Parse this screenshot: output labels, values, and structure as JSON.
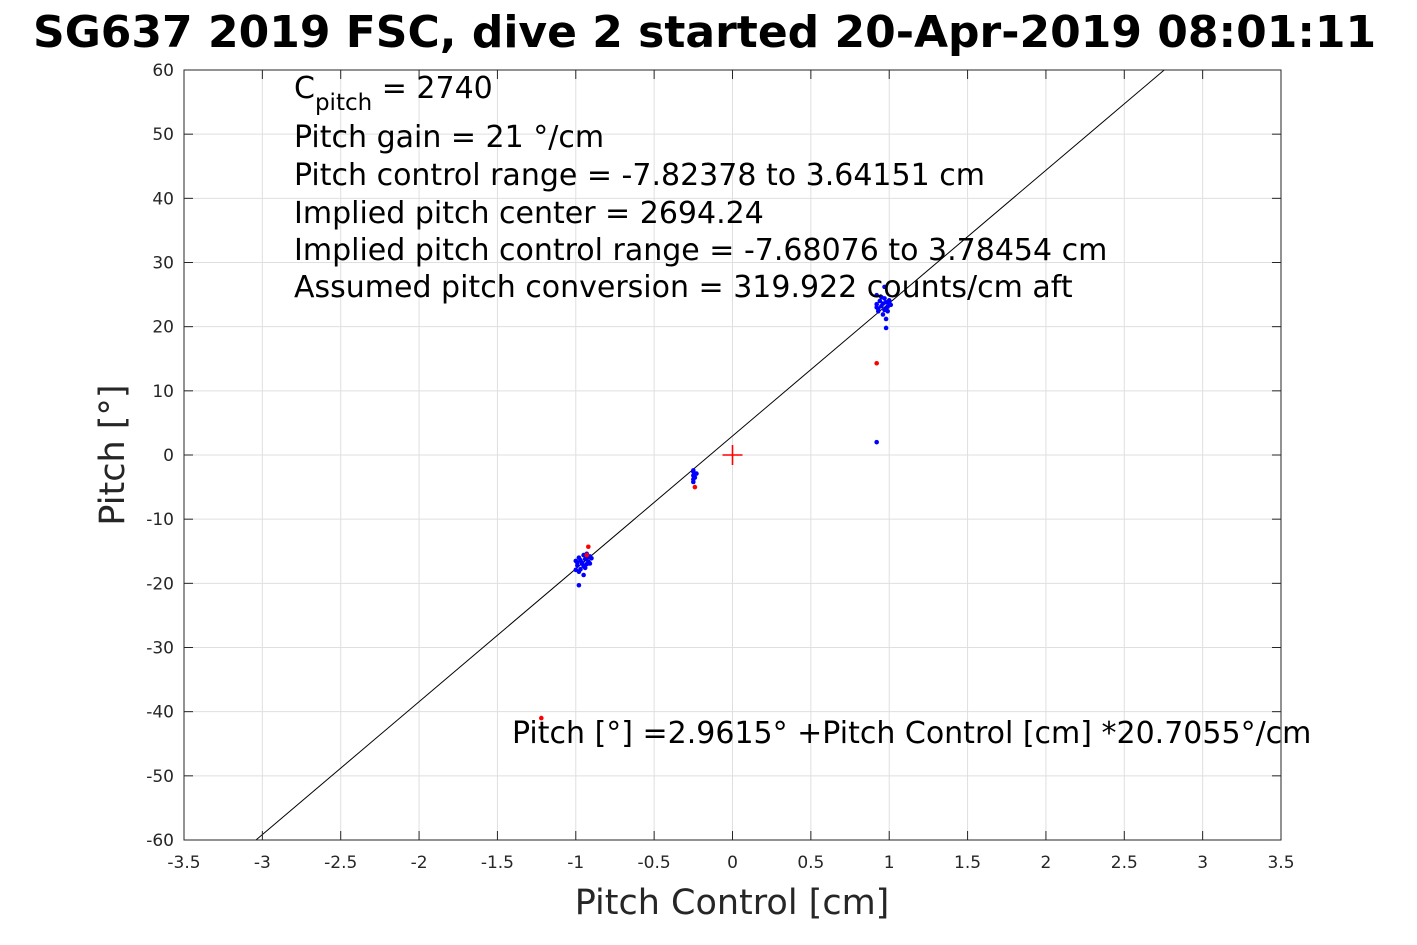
{
  "chart_data": {
    "type": "scatter",
    "title": "SG637 2019 FSC, dive 2 started 20-Apr-2019 08:01:11",
    "xlabel": "Pitch Control [cm]",
    "ylabel": "Pitch [°]",
    "xlim": [
      -3.5,
      3.5
    ],
    "ylim": [
      -60,
      60
    ],
    "grid": true,
    "x_ticks": [
      -3.5,
      -3,
      -2.5,
      -2,
      -1.5,
      -1,
      -0.5,
      0,
      0.5,
      1,
      1.5,
      2,
      2.5,
      3,
      3.5
    ],
    "y_ticks": [
      -60,
      -50,
      -40,
      -30,
      -20,
      -10,
      0,
      10,
      20,
      30,
      40,
      50,
      60
    ],
    "annotations": {
      "c_pitch_prefix": "C",
      "c_pitch_sub": "pitch",
      "c_pitch_value": " = 2740",
      "lines": [
        "Pitch gain = 21 °/cm",
        "Pitch control range = -7.82378 to 3.64151 cm",
        "Implied pitch center = 2694.24",
        "Implied pitch control range = -7.68076 to 3.78454 cm",
        "Assumed pitch conversion = 319.922 counts/cm aft"
      ],
      "fit_label": "Pitch [°] =2.9615° +Pitch Control [cm] *20.7055°/cm"
    },
    "fit_line": {
      "intercept": 2.9615,
      "slope": 20.7055,
      "color": "#000000"
    },
    "center_marker": {
      "x": 0,
      "y": 0,
      "color": "#ff0000"
    },
    "series": [
      {
        "color": "#0000ff",
        "points": [
          [
            -1.0,
            -16.5
          ],
          [
            -0.99,
            -17.2
          ],
          [
            -0.98,
            -16.0
          ],
          [
            -0.97,
            -17.8
          ],
          [
            -0.96,
            -16.8
          ],
          [
            -0.95,
            -17.3
          ],
          [
            -0.94,
            -16.2
          ],
          [
            -0.93,
            -15.4
          ],
          [
            -0.92,
            -16.6
          ],
          [
            -0.91,
            -15.8
          ],
          [
            -0.9,
            -16.1
          ],
          [
            -0.98,
            -18.2
          ],
          [
            -1.0,
            -17.9
          ],
          [
            -0.96,
            -16.9
          ],
          [
            -0.94,
            -17.6
          ],
          [
            -0.93,
            -17.0
          ],
          [
            -0.95,
            -18.7
          ],
          [
            -0.97,
            -16.4
          ],
          [
            -0.92,
            -15.9
          ],
          [
            -0.99,
            -16.8
          ],
          [
            -0.98,
            -20.3
          ],
          [
            -0.91,
            -16.9
          ],
          [
            -0.95,
            -15.6
          ],
          [
            -0.25,
            -2.6
          ],
          [
            -0.25,
            -3.2
          ],
          [
            -0.25,
            -3.8
          ],
          [
            -0.25,
            -4.2
          ],
          [
            -0.24,
            -3.5
          ],
          [
            -0.23,
            -2.9
          ],
          [
            -0.25,
            -2.4
          ],
          [
            0.92,
            24.9
          ],
          [
            0.92,
            23.5
          ],
          [
            0.92,
            23.0
          ],
          [
            0.93,
            22.4
          ],
          [
            0.94,
            24.0
          ],
          [
            0.95,
            23.2
          ],
          [
            0.96,
            23.6
          ],
          [
            0.97,
            24.4
          ],
          [
            0.98,
            23.8
          ],
          [
            0.98,
            22.8
          ],
          [
            0.99,
            23.1
          ],
          [
            1.0,
            24.1
          ],
          [
            1.01,
            23.4
          ],
          [
            0.97,
            22.6
          ],
          [
            0.96,
            21.9
          ],
          [
            0.98,
            21.2
          ],
          [
            0.98,
            19.8
          ],
          [
            0.97,
            26.2
          ],
          [
            0.93,
            22.8
          ],
          [
            0.95,
            24.6
          ],
          [
            0.99,
            22.4
          ],
          [
            1.0,
            23.7
          ],
          [
            0.92,
            2.0
          ]
        ]
      },
      {
        "color": "#ff0000",
        "points": [
          [
            -0.92,
            -14.3
          ],
          [
            -0.93,
            -15.6
          ],
          [
            -0.24,
            -5.0
          ],
          [
            0.92,
            14.3
          ],
          [
            -1.22,
            -41.0
          ]
        ]
      }
    ]
  }
}
